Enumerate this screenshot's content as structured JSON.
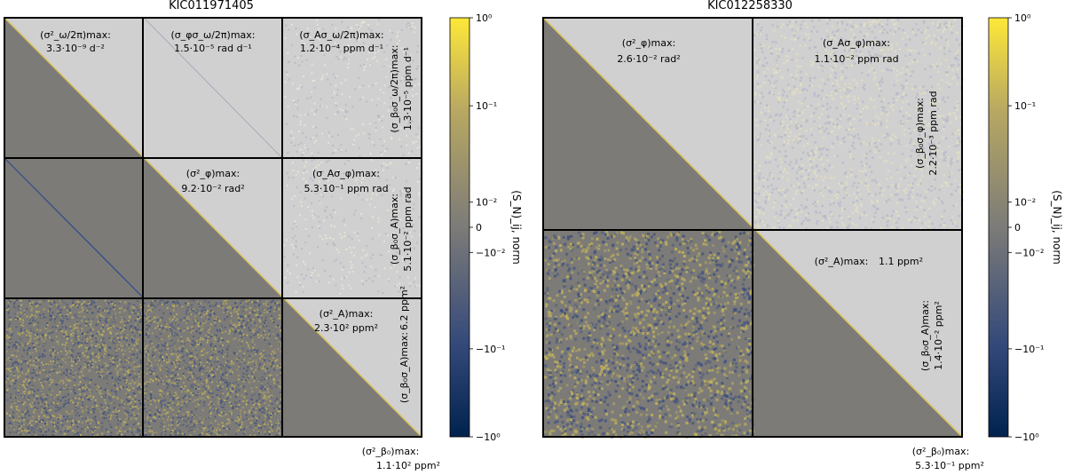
{
  "figure": {
    "colorbar_label": "(S_N)_ij, norm",
    "colors": {
      "lower_fill": "#7c7b78",
      "upper_fill": "#d0d0d0",
      "diagonal_line": "#d8c050",
      "block_border": "#000000",
      "cmap_low": "#00224e",
      "cmap_mid": "#7c7b78",
      "cmap_high": "#fee838"
    }
  },
  "chart_data": [
    {
      "type": "heatmap",
      "title": "KIC011971405",
      "n_blocks": 3,
      "block_labels_upper": [
        {
          "row": 0,
          "col": 0,
          "name": "(σ²_ω/2π)max:",
          "value": "3.3·10⁻⁹ d⁻²"
        },
        {
          "row": 0,
          "col": 1,
          "name": "(σ_φσ_ω/2π)max:",
          "value": "1.5·10⁻⁵ rad d⁻¹"
        },
        {
          "row": 0,
          "col": 2,
          "name": "(σ_Aσ_ω/2π)max:",
          "value": "1.2·10⁻⁴ ppm d⁻¹"
        },
        {
          "row": 1,
          "col": 1,
          "name": "(σ²_φ)max:",
          "value": "9.2·10⁻² rad²"
        },
        {
          "row": 1,
          "col": 2,
          "name": "(σ_Aσ_φ)max:",
          "value": "5.3·10⁻¹ ppm rad"
        },
        {
          "row": 2,
          "col": 2,
          "name": "(σ²_A)max:",
          "value": "2.3·10² ppm²"
        }
      ],
      "block_labels_vertical": [
        {
          "row": 0,
          "name": "(σ_β₀σ_ω/2π)max:",
          "value": "1.3·10⁻⁵ ppm d⁻¹"
        },
        {
          "row": 1,
          "name": "(σ_β₀σ_A)max:",
          "value": "5.1·10⁻² ppm rad"
        },
        {
          "row": 2,
          "name": "(σ_β₀σ_A)max:",
          "value": "6.2 ppm²"
        }
      ],
      "bottom_label": {
        "name": "(σ²_β₀)max:",
        "value": "1.1·10² ppm²"
      },
      "colorbar": {
        "scale": "symlog",
        "range": [
          -1,
          1
        ],
        "ticks": [
          "10⁰",
          "10⁻¹",
          "10⁻²",
          "0",
          "−10⁻²",
          "−10⁻¹",
          "−10⁰"
        ]
      }
    },
    {
      "type": "heatmap",
      "title": "KIC012258330",
      "n_blocks": 2,
      "block_labels_upper": [
        {
          "row": 0,
          "col": 0,
          "name": "(σ²_φ)max:",
          "value": "2.6·10⁻² rad²"
        },
        {
          "row": 0,
          "col": 1,
          "name": "(σ_Aσ_φ)max:",
          "value": "1.1·10⁻² ppm rad"
        },
        {
          "row": 1,
          "col": 1,
          "name": "(σ²_A)max:",
          "value": "1.1 ppm²"
        }
      ],
      "block_labels_vertical": [
        {
          "row": 0,
          "name": "(σ_β₀σ_φ)max:",
          "value": "2.2·10⁻³ ppm rad"
        },
        {
          "row": 1,
          "name": "(σ_β₀σ_A)max:",
          "value": "1.4·10⁻² ppm²"
        }
      ],
      "bottom_label": {
        "name": "(σ²_β₀)max:",
        "value": "5.3·10⁻¹ ppm²"
      },
      "colorbar": {
        "scale": "symlog",
        "range": [
          -1,
          1
        ],
        "ticks": [
          "10⁰",
          "10⁻¹",
          "10⁻²",
          "0",
          "−10⁻²",
          "−10⁻¹",
          "−10⁰"
        ]
      }
    }
  ]
}
